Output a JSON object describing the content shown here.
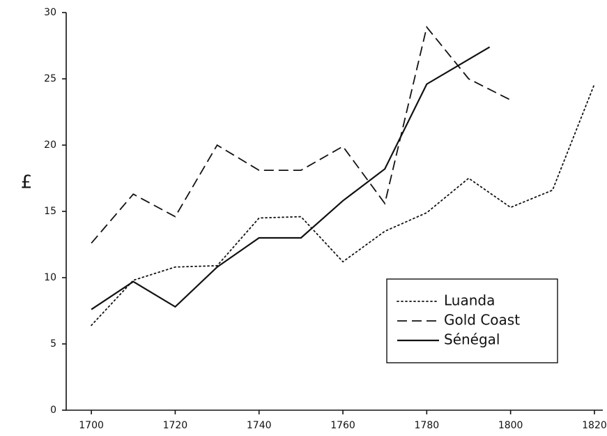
{
  "chart_data": {
    "type": "line",
    "y_label": "£",
    "xlim": [
      1694,
      1822
    ],
    "ylim": [
      0,
      30
    ],
    "xticks": [
      1700,
      1720,
      1740,
      1760,
      1780,
      1800,
      1820
    ],
    "yticks": [
      0,
      5,
      10,
      15,
      20,
      25,
      30
    ],
    "legend": "lower right",
    "series": [
      {
        "name": "Luanda",
        "color": "#111111",
        "dash": "dotted",
        "x": [
          1700,
          1710,
          1720,
          1730,
          1740,
          1750,
          1760,
          1770,
          1780,
          1790,
          1800,
          1810,
          1820
        ],
        "values": [
          6.4,
          9.8,
          10.8,
          10.9,
          14.5,
          14.6,
          11.2,
          13.5,
          14.9,
          17.5,
          15.3,
          16.6,
          24.6
        ]
      },
      {
        "name": "Gold Coast",
        "color": "#111111",
        "dash": "dashed",
        "x": [
          1700,
          1710,
          1720,
          1730,
          1740,
          1750,
          1760,
          1770,
          1780,
          1790,
          1800
        ],
        "values": [
          12.6,
          16.3,
          14.6,
          20.0,
          18.1,
          18.1,
          19.9,
          15.6,
          28.9,
          25.0,
          23.4
        ]
      },
      {
        "name": "Sénégal",
        "color": "#111111",
        "dash": "solid",
        "x": [
          1700,
          1710,
          1720,
          1730,
          1740,
          1750,
          1760,
          1770,
          1780,
          1795
        ],
        "values": [
          7.6,
          9.7,
          7.8,
          10.8,
          13.0,
          13.0,
          15.8,
          18.2,
          24.6,
          27.4
        ]
      }
    ]
  }
}
